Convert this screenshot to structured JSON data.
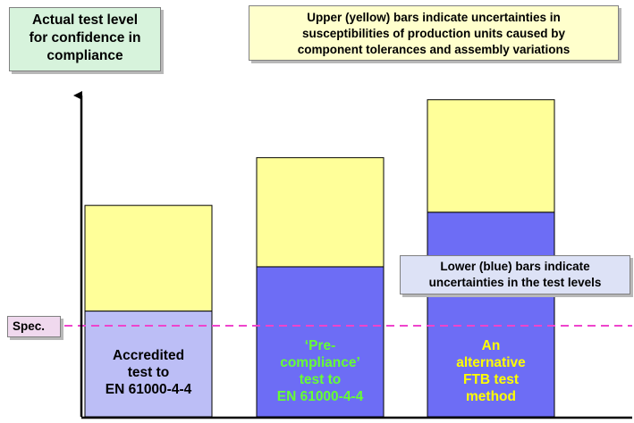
{
  "chart_data": {
    "type": "bar",
    "stacked": true,
    "categories": [
      "Accredited test to EN 61000-4-4",
      "'Pre-compliance' test to EN 61000-4-4",
      "An alternative FTB test method"
    ],
    "category_labels": [
      "Accredited\ntest to\nEN 61000-4-4",
      "‘Pre-\ncompliance’\ntest to\nEN 61000-4-4",
      "An\nalternative\nFTB test\nmethod"
    ],
    "series": [
      {
        "color": "#bcbef6",
        "values": [
          31,
          44,
          60
        ]
      },
      {
        "color": "#ffff99",
        "values": [
          31,
          32,
          33
        ]
      }
    ],
    "spec_level": 26,
    "spec_label": "Spec.",
    "ylabel": "Actual test level\nfor confidence in\ncompliance",
    "ylim": [
      0,
      100
    ],
    "grid": false,
    "annotations": {
      "upper_note": "Upper (yellow) bars indicate uncertainties in\nsusceptibilities of production units caused by\ncomponent tolerances and assembly variations",
      "lower_note": "Lower (blue) bars indicate\nuncertainties in the test levels"
    }
  },
  "colors": {
    "lower_bar_1": "#bcbef6",
    "lower_bar_2_3": "#6d6df5",
    "upper_bar": "#ffff99",
    "spec_line": "#ee44cc"
  }
}
